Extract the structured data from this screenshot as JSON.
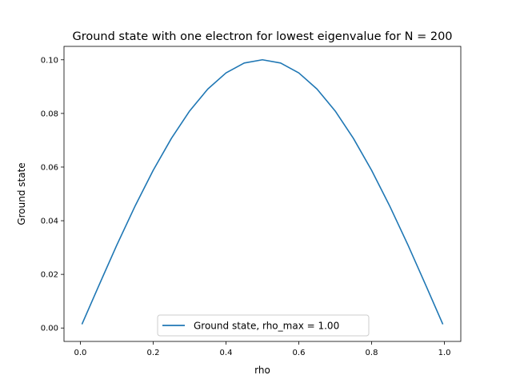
{
  "chart_data": {
    "type": "line",
    "title": "Ground state with one electron for lowest eigenvalue for N = 200",
    "xlabel": "rho",
    "ylabel": "Ground state",
    "xlim": [
      -0.045,
      1.045
    ],
    "ylim": [
      -0.005,
      0.105
    ],
    "xticks": [
      0.0,
      0.2,
      0.4,
      0.6,
      0.8,
      1.0
    ],
    "xtick_labels": [
      "0.0",
      "0.2",
      "0.4",
      "0.6",
      "0.8",
      "1.0"
    ],
    "yticks": [
      0.0,
      0.02,
      0.04,
      0.06,
      0.08,
      0.1
    ],
    "ytick_labels": [
      "0.00",
      "0.02",
      "0.04",
      "0.06",
      "0.08",
      "0.10"
    ],
    "grid": false,
    "legend_position": "lower center",
    "series": [
      {
        "name": "Ground state, rho_max = 1.00",
        "color": "#1f77b4",
        "x": [
          0.005,
          0.05,
          0.1,
          0.15,
          0.2,
          0.25,
          0.3,
          0.35,
          0.4,
          0.45,
          0.5,
          0.55,
          0.6,
          0.65,
          0.7,
          0.75,
          0.8,
          0.85,
          0.9,
          0.95,
          0.995
        ],
        "y": [
          0.0016,
          0.0156,
          0.0309,
          0.0454,
          0.0588,
          0.0707,
          0.0809,
          0.0891,
          0.0951,
          0.0988,
          0.1,
          0.0988,
          0.0951,
          0.0891,
          0.0809,
          0.0707,
          0.0588,
          0.0454,
          0.0309,
          0.0156,
          0.0016
        ]
      }
    ]
  }
}
